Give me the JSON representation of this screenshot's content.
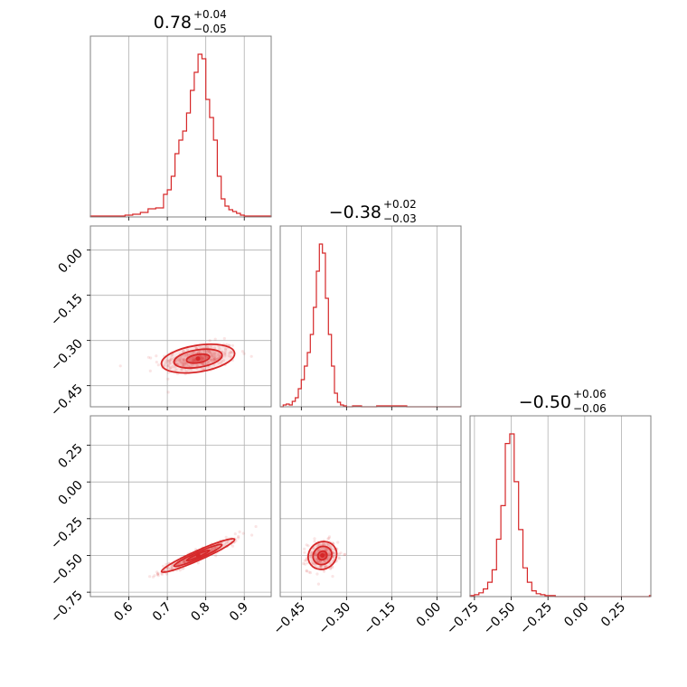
{
  "chart_data": {
    "type": "scatter",
    "kind": "corner-plot",
    "color": "#d62728",
    "parameters": [
      {
        "median": 0.78,
        "plus": 0.04,
        "minus": 0.05,
        "title_main": "0.78",
        "title_plus": "+0.04",
        "title_minus": "−0.05",
        "range": [
          0.5,
          0.97
        ],
        "ticks": [
          0.6,
          0.7,
          0.8,
          0.9
        ],
        "tick_labels": [
          "0.6",
          "0.7",
          "0.8",
          "0.9"
        ]
      },
      {
        "median": -0.38,
        "plus": 0.02,
        "minus": 0.03,
        "title_main": "−0.38",
        "title_plus": "+0.02",
        "title_minus": "−0.03",
        "range": [
          -0.52,
          0.08
        ],
        "ticks": [
          -0.45,
          -0.3,
          -0.15,
          0.0
        ],
        "tick_labels": [
          "−0.45",
          "−0.30",
          "−0.15",
          "0.00"
        ]
      },
      {
        "median": -0.5,
        "plus": 0.06,
        "minus": 0.06,
        "title_main": "−0.50",
        "title_plus": "+0.06",
        "title_minus": "−0.06",
        "range": [
          -0.78,
          0.45
        ],
        "ticks": [
          -0.75,
          -0.5,
          -0.25,
          0.0,
          0.25
        ],
        "tick_labels": [
          "−0.75",
          "−0.50",
          "−0.25",
          "0.00",
          "0.25"
        ]
      }
    ],
    "histograms": [
      {
        "param": 0,
        "x": [
          0.5,
          0.53,
          0.56,
          0.59,
          0.61,
          0.63,
          0.65,
          0.67,
          0.69,
          0.7,
          0.71,
          0.72,
          0.73,
          0.74,
          0.75,
          0.76,
          0.77,
          0.78,
          0.79,
          0.8,
          0.81,
          0.82,
          0.83,
          0.84,
          0.85,
          0.86,
          0.87,
          0.88,
          0.89,
          0.9,
          0.92,
          0.94,
          0.96
        ],
        "counts": [
          1,
          1,
          1,
          2,
          3,
          5,
          9,
          10,
          25,
          30,
          45,
          70,
          85,
          95,
          115,
          140,
          160,
          180,
          175,
          130,
          110,
          85,
          45,
          20,
          12,
          8,
          6,
          4,
          2,
          1,
          1,
          1,
          1
        ]
      },
      {
        "param": 1,
        "x": [
          -0.52,
          -0.51,
          -0.5,
          -0.49,
          -0.48,
          -0.47,
          -0.46,
          -0.45,
          -0.44,
          -0.43,
          -0.42,
          -0.41,
          -0.4,
          -0.39,
          -0.38,
          -0.37,
          -0.36,
          -0.35,
          -0.34,
          -0.33,
          -0.32,
          -0.31,
          -0.3,
          -0.28,
          -0.25,
          -0.2,
          -0.1,
          0.0
        ],
        "counts": [
          0,
          2,
          3,
          2,
          6,
          10,
          20,
          30,
          45,
          60,
          80,
          110,
          150,
          180,
          170,
          120,
          80,
          45,
          15,
          5,
          2,
          1,
          0,
          1,
          0,
          1,
          0,
          0
        ]
      },
      {
        "param": 2,
        "x": [
          -0.78,
          -0.75,
          -0.72,
          -0.69,
          -0.66,
          -0.63,
          -0.6,
          -0.57,
          -0.54,
          -0.51,
          -0.48,
          -0.45,
          -0.42,
          -0.39,
          -0.36,
          -0.33,
          -0.3,
          -0.27,
          -0.24,
          -0.2,
          0.0,
          0.44
        ],
        "counts": [
          1,
          2,
          4,
          8,
          15,
          28,
          60,
          95,
          160,
          170,
          120,
          70,
          30,
          15,
          6,
          3,
          2,
          1,
          1,
          0,
          0,
          1
        ]
      }
    ],
    "scatter_2d": [
      {
        "x_param": 0,
        "y_param": 1,
        "center": [
          0.78,
          -0.36
        ],
        "spread": [
          0.05,
          0.025
        ],
        "correlation": 0.35,
        "points": 280
      },
      {
        "x_param": 0,
        "y_param": 2,
        "center": [
          0.78,
          -0.5
        ],
        "spread": [
          0.05,
          0.06
        ],
        "correlation": 0.95,
        "points": 280
      },
      {
        "x_param": 1,
        "y_param": 2,
        "center": [
          -0.38,
          -0.5
        ],
        "spread": [
          0.025,
          0.05
        ],
        "correlation": 0.1,
        "points": 260
      }
    ],
    "grid": true
  }
}
